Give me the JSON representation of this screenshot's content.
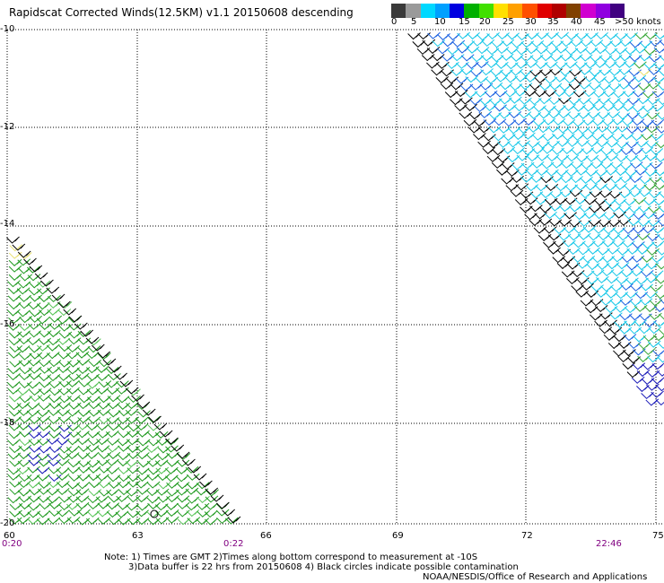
{
  "title": "Rapidscat Corrected Winds(12.5KM) v1.1 20150608 descending",
  "scale": {
    "colors": [
      "#3a3a3a",
      "#9a9a9a",
      "#00d8ff",
      "#00a0ff",
      "#0000e0",
      "#00b000",
      "#40e000",
      "#ffe000",
      "#ffa000",
      "#ff5000",
      "#e00000",
      "#b00000",
      "#804000",
      "#d000d0",
      "#9000e0",
      "#400080"
    ],
    "labels": [
      "0",
      "5",
      "10",
      "15",
      "20",
      "25",
      "30",
      "35",
      "40",
      "45",
      ">50 knots"
    ]
  },
  "lat_labels": [
    "-10",
    "-12",
    "-14",
    "-16",
    "-18",
    "-20"
  ],
  "lon_labels": [
    "60",
    "63",
    "66",
    "69",
    "72",
    "75"
  ],
  "time_labels": [
    "0:20",
    "0:22",
    "22:46"
  ],
  "notes": {
    "line1": "Note: 1) Times are GMT 2)Times along bottom correspond to measurement at -10S",
    "line2": "3)Data buffer is 22 hrs from 20150608 4) Black circles indicate possible contamination",
    "line3": "NOAA/NESDIS/Office of Research and Applications"
  }
}
